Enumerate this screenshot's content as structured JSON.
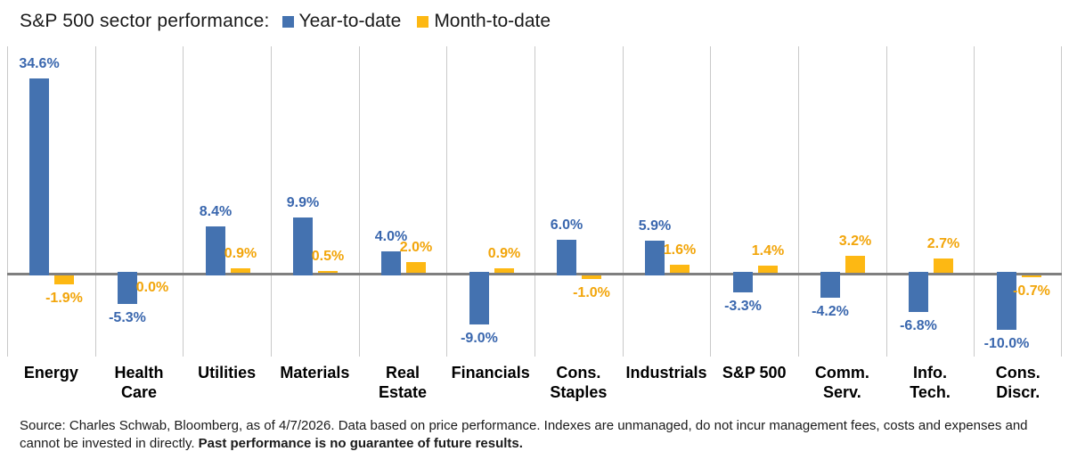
{
  "chart_data": {
    "type": "bar",
    "title": "S&P 500 sector performance:",
    "legend_position": "top",
    "grid": "vertical category separator lines only",
    "ylim": [
      -14.7,
      40.3
    ],
    "zero_line_color": "#7F7F7F",
    "gridline_color": "#C9C9C9",
    "categories": [
      "Energy",
      "Health Care",
      "Utilities",
      "Materials",
      "Real Estate",
      "Financials",
      "Cons. Staples",
      "Industrials",
      "S&P 500",
      "Comm. Serv.",
      "Info. Tech.",
      "Cons. Discr."
    ],
    "category_display": [
      "Energy",
      "Health\nCare",
      "Utilities",
      "Materials",
      "Real\nEstate",
      "Financials",
      "Cons.\nStaples",
      "Industrials",
      "S&P 500",
      "Comm.\nServ.",
      "Info.\nTech.",
      "Cons.\nDiscr."
    ],
    "series": [
      {
        "name": "Year-to-date",
        "color": "#4472B0",
        "label_color": "#3A67AE",
        "values": [
          34.6,
          -5.3,
          8.4,
          9.9,
          4.0,
          -9.0,
          6.0,
          5.9,
          -3.3,
          -4.2,
          -6.8,
          -10.0
        ],
        "labels": [
          "34.6%",
          "-5.3%",
          "8.4%",
          "9.9%",
          "4.0%",
          "-9.0%",
          "6.0%",
          "5.9%",
          "-3.3%",
          "-4.2%",
          "-6.8%",
          "-10.0%"
        ]
      },
      {
        "name": "Month-to-date",
        "color": "#FDB813",
        "label_color": "#F2A50A",
        "values": [
          -1.9,
          0.0,
          0.9,
          0.5,
          2.0,
          0.9,
          -1.0,
          1.6,
          1.4,
          3.2,
          2.7,
          -0.7
        ],
        "labels": [
          "-1.9%",
          "0.0%",
          "0.9%",
          "0.5%",
          "2.0%",
          "0.9%",
          "-1.0%",
          "1.6%",
          "1.4%",
          "3.2%",
          "2.7%",
          "-0.7%"
        ]
      }
    ]
  },
  "source": {
    "text": "Source: Charles Schwab, Bloomberg, as of 4/7/2026.  Data based on price performance. Indexes are unmanaged, do not incur management fees, costs and expenses and cannot be invested in directly. ",
    "bold": "Past performance is no guarantee of future results."
  }
}
